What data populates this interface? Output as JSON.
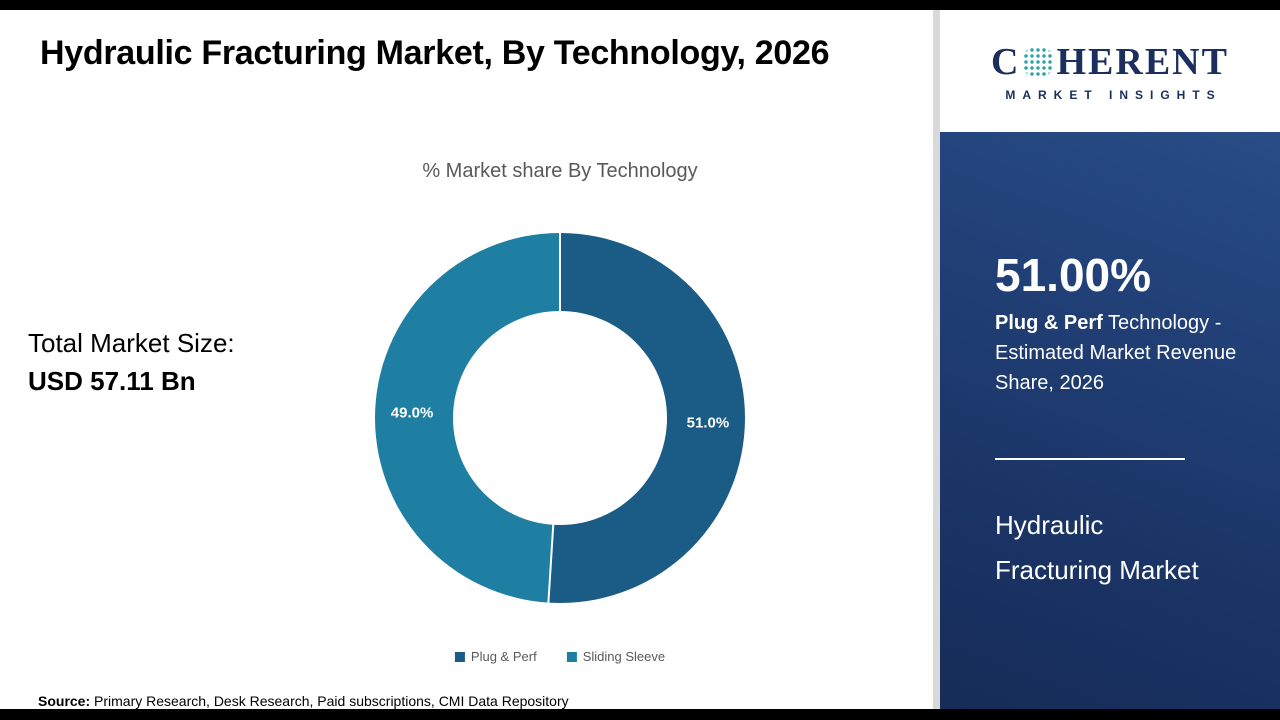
{
  "page": {
    "title": "Hydraulic Fracturing Market, By Technology, 2026",
    "source_label": "Source:",
    "source_text": " Primary Research, Desk Research, Paid subscriptions, CMI Data Repository"
  },
  "stats": {
    "total_label": "Total Market Size:",
    "total_value": "USD 57.11 Bn"
  },
  "chart_data": {
    "type": "pie",
    "subtype": "donut",
    "title": "% Market share By Technology",
    "categories": [
      "Plug & Perf",
      "Sliding Sleeve"
    ],
    "values": [
      51.0,
      49.0
    ],
    "labels": [
      "51.0%",
      "49.0%"
    ],
    "colors": [
      "#1a5c86",
      "#1f7fa3"
    ],
    "legend_position": "bottom",
    "start_angle_deg": 0,
    "direction": "clockwise"
  },
  "sidebar": {
    "logo": {
      "line1_pre": "C",
      "line1_post": "HERENT",
      "line2": "MARKET INSIGHTS"
    },
    "share_value": "51.00%",
    "share_desc_bold": "Plug & Perf",
    "share_desc_rest": " Technology - Estimated Market Revenue Share, 2026",
    "market_name_line1": "Hydraulic",
    "market_name_line2": "Fracturing Market"
  },
  "theme": {
    "sidebar_bg": "#1e3a6b",
    "logo_navy": "#1b2e5e",
    "accent_teal": "#2fa3a8",
    "plug_perf_blue": "#1a5c86",
    "sliding_sleeve_teal": "#1f7fa3",
    "frame_black": "#000000",
    "divider_gray": "#d9d9d9",
    "muted_text": "#595959"
  }
}
